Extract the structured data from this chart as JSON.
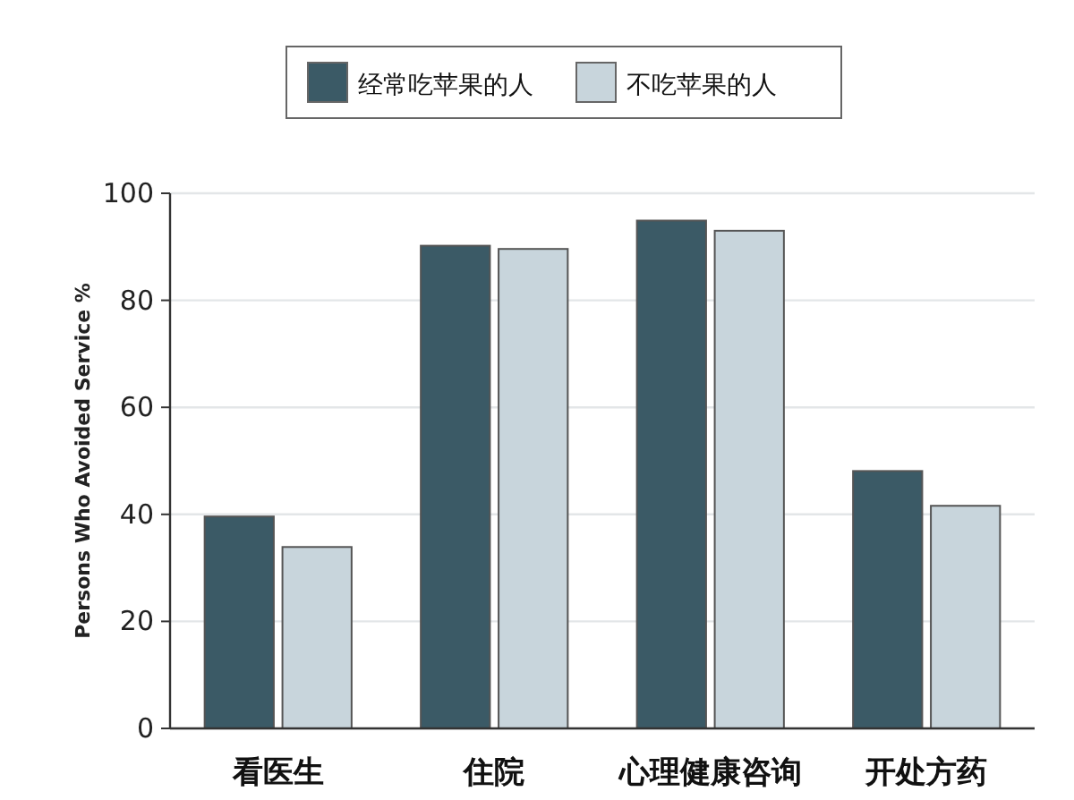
{
  "chart_data": {
    "type": "bar",
    "ylabel": "Persons Who Avoided Service %",
    "categories": [
      "看医生",
      "住院",
      "心理健康咨询",
      "开处方药"
    ],
    "series": [
      {
        "name": "经常吃苹果的人",
        "color": "#3b5a66",
        "values": [
          39.6,
          90.2,
          94.9,
          48.1
        ]
      },
      {
        "name": "不吃苹果的人",
        "color": "#c8d5dc",
        "values": [
          33.9,
          89.6,
          93.0,
          41.6
        ]
      }
    ],
    "ylim": [
      0,
      100
    ],
    "yticks": [
      0,
      20,
      40,
      60,
      80,
      100
    ],
    "grid": "y",
    "legend": "top"
  }
}
